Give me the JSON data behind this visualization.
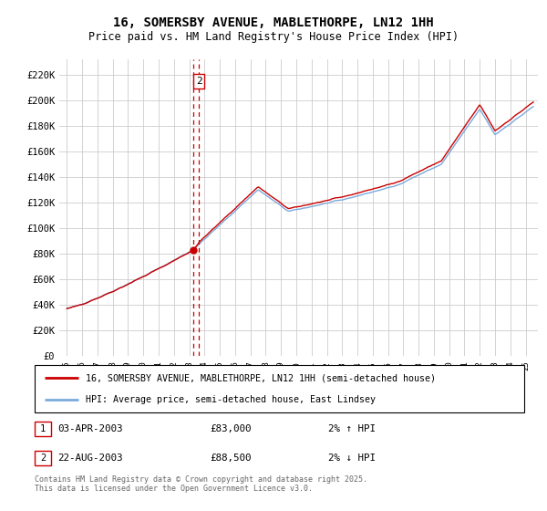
{
  "title": "16, SOMERSBY AVENUE, MABLETHORPE, LN12 1HH",
  "subtitle": "Price paid vs. HM Land Registry's House Price Index (HPI)",
  "ylabel_ticks": [
    "£0",
    "£20K",
    "£40K",
    "£60K",
    "£80K",
    "£100K",
    "£120K",
    "£140K",
    "£160K",
    "£180K",
    "£200K",
    "£220K"
  ],
  "ytick_values": [
    0,
    20000,
    40000,
    60000,
    80000,
    100000,
    120000,
    140000,
    160000,
    180000,
    200000,
    220000
  ],
  "ylim": [
    0,
    232000
  ],
  "xlim": [
    1994.5,
    2025.8
  ],
  "legend_line1": "16, SOMERSBY AVENUE, MABLETHORPE, LN12 1HH (semi-detached house)",
  "legend_line2": "HPI: Average price, semi-detached house, East Lindsey",
  "table_rows": [
    {
      "num": "1",
      "date": "03-APR-2003",
      "price": "£83,000",
      "change": "2% ↑ HPI"
    },
    {
      "num": "2",
      "date": "22-AUG-2003",
      "price": "£88,500",
      "change": "2% ↓ HPI"
    }
  ],
  "footer": "Contains HM Land Registry data © Crown copyright and database right 2025.\nThis data is licensed under the Open Government Licence v3.0.",
  "sale1_year": 2003.25,
  "sale2_year": 2003.64,
  "sale1_price": 83000,
  "sale2_price": 88500,
  "hpi_color": "#7aaadd",
  "price_color": "#cc0000",
  "annotation_color": "#cc0000",
  "grid_color": "#cccccc",
  "bg_color": "#ffffff"
}
